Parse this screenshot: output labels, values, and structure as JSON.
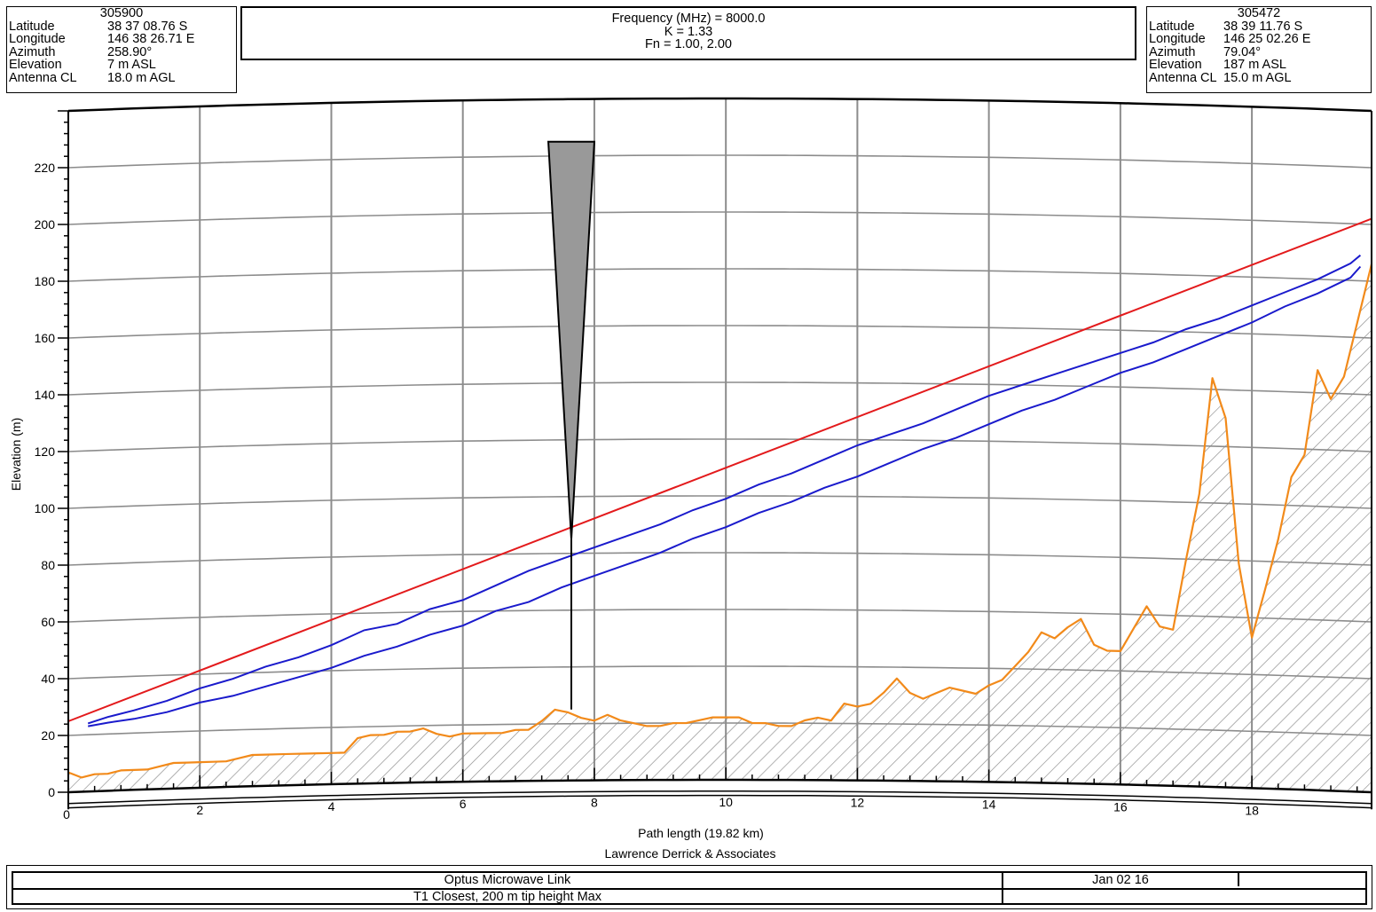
{
  "site_left": {
    "id": "305900",
    "rows": [
      {
        "label": "Latitude",
        "value": "38 37 08.76 S"
      },
      {
        "label": "Longitude",
        "value": "146 38 26.71 E"
      },
      {
        "label": "Azimuth",
        "value": "258.90°"
      },
      {
        "label": "Elevation",
        "value": "7 m ASL"
      },
      {
        "label": "Antenna CL",
        "value": "18.0 m AGL"
      }
    ]
  },
  "site_right": {
    "id": "305472",
    "rows": [
      {
        "label": "Latitude",
        "value": "38 39 11.76 S"
      },
      {
        "label": "Longitude",
        "value": "146 25 02.26 E"
      },
      {
        "label": "Azimuth",
        "value": "79.04°"
      },
      {
        "label": "Elevation",
        "value": "187 m ASL"
      },
      {
        "label": "Antenna CL",
        "value": "15.0 m AGL"
      }
    ]
  },
  "params": {
    "frequency": "Frequency (MHz) = 8000.0",
    "k": "K = 1.33",
    "fn": "Fn = 1.00, 2.00"
  },
  "footer": {
    "title": "Optus Microwave Link",
    "date": "Jan 02 16",
    "subtitle": "T1 Closest, 200 m tip height Max"
  },
  "credit": "Lawrence Derrick & Associates",
  "colors": {
    "terrain": "#f28a1a",
    "line_of_sight": "#e31a1c",
    "fresnel": "#1a1acc",
    "grid": "#8c8c8c",
    "obstruction": "#999999"
  },
  "chart_data": {
    "type": "line",
    "xlabel": "Path length (19.82 km)",
    "ylabel": "Elevation (m)",
    "xlim": [
      0,
      19.82
    ],
    "ylim": [
      0,
      230
    ],
    "x_ticks": [
      0,
      2,
      4,
      6,
      8,
      10,
      12,
      14,
      16,
      18
    ],
    "y_ticks": [
      0,
      20,
      40,
      60,
      80,
      100,
      120,
      140,
      160,
      180,
      200,
      220
    ],
    "grid": true,
    "series": [
      {
        "key": "terrain",
        "x": [
          0,
          0.2,
          0.4,
          0.6,
          0.8,
          1.0,
          1.2,
          1.4,
          1.6,
          1.8,
          2.0,
          2.2,
          2.4,
          2.6,
          2.8,
          3.0,
          3.2,
          3.4,
          3.6,
          3.8,
          4.0,
          4.2,
          4.4,
          4.6,
          4.8,
          5.0,
          5.2,
          5.4,
          5.6,
          5.8,
          6.0,
          6.2,
          6.4,
          6.6,
          6.8,
          7.0,
          7.2,
          7.4,
          7.6,
          7.8,
          8.0,
          8.2,
          8.4,
          8.6,
          8.8,
          9.0,
          9.2,
          9.4,
          9.6,
          9.8,
          10.0,
          10.2,
          10.4,
          10.6,
          10.8,
          11.0,
          11.2,
          11.4,
          11.6,
          11.8,
          12.0,
          12.2,
          12.4,
          12.6,
          12.8,
          13.0,
          13.2,
          13.4,
          13.6,
          13.8,
          14.0,
          14.2,
          14.4,
          14.6,
          14.8,
          15.0,
          15.2,
          15.4,
          15.6,
          15.8,
          16.0,
          16.2,
          16.4,
          16.6,
          16.8,
          17.0,
          17.2,
          17.4,
          17.6,
          17.8,
          18.0,
          18.2,
          18.4,
          18.6,
          18.8,
          19.0,
          19.2,
          19.4,
          19.6,
          19.82
        ],
        "y": [
          7,
          5,
          6,
          6,
          7,
          7,
          7,
          8,
          9,
          9,
          9,
          9,
          9,
          10,
          11,
          11,
          11,
          11,
          11,
          11,
          11,
          11,
          16,
          17,
          17,
          18,
          18,
          19,
          17,
          16,
          17,
          17,
          17,
          17,
          18,
          18,
          21,
          25,
          24,
          22,
          21,
          23,
          21,
          20,
          19,
          19,
          20,
          20,
          21,
          22,
          22,
          22,
          20,
          20,
          19,
          19,
          21,
          22,
          21,
          27,
          26,
          27,
          31,
          36,
          31,
          29,
          31,
          33,
          32,
          31,
          34,
          36,
          41,
          46,
          53,
          51,
          55,
          58,
          49,
          47,
          47,
          55,
          63,
          56,
          55,
          80,
          103,
          144,
          130,
          79,
          53,
          70,
          88,
          110,
          118,
          148,
          138,
          146,
          165,
          186
        ]
      },
      {
        "key": "line_of_sight",
        "x": [
          0,
          19.82
        ],
        "y": [
          25,
          202
        ]
      },
      {
        "key": "fresnel_upper",
        "x": [
          0.3,
          0.6,
          1.0,
          1.5,
          2.0,
          2.5,
          3.0,
          3.5,
          4.0,
          4.5,
          5.0,
          5.5,
          6.0,
          6.5,
          7.0,
          7.5,
          8.0,
          8.5,
          9.0,
          9.5,
          10.0,
          10.5,
          11.0,
          11.5,
          12.0,
          12.5,
          13.0,
          13.5,
          14.0,
          14.5,
          15.0,
          15.5,
          16.0,
          16.5,
          17.0,
          17.5,
          18.0,
          18.5,
          19.0,
          19.5,
          19.65
        ],
        "y": [
          24,
          26,
          28,
          31,
          35,
          38,
          42,
          45,
          49,
          54,
          56,
          61,
          64,
          69,
          74,
          78,
          82,
          86,
          90,
          95,
          99,
          104,
          108,
          113,
          118,
          122,
          126,
          131,
          136,
          140,
          144,
          148,
          152,
          156,
          161,
          165,
          170,
          175,
          180,
          186,
          189
        ]
      },
      {
        "key": "fresnel_lower",
        "x": [
          0.3,
          0.6,
          1.0,
          1.5,
          2.0,
          2.5,
          3.0,
          3.5,
          4.0,
          4.5,
          5.0,
          5.5,
          6.0,
          6.5,
          7.0,
          7.5,
          8.0,
          8.5,
          9.0,
          9.5,
          10.0,
          10.5,
          11.0,
          11.5,
          12.0,
          12.5,
          13.0,
          13.5,
          14.0,
          14.5,
          15.0,
          15.5,
          16.0,
          16.5,
          17.0,
          17.5,
          18.0,
          18.5,
          19.0,
          19.5,
          19.65
        ],
        "y": [
          23,
          24,
          25,
          27,
          30,
          32,
          35,
          38,
          41,
          45,
          48,
          52,
          55,
          60,
          63,
          68,
          72,
          76,
          80,
          85,
          89,
          94,
          98,
          103,
          107,
          112,
          117,
          121,
          126,
          131,
          135,
          140,
          145,
          149,
          154,
          159,
          164,
          170,
          175,
          181,
          185
        ]
      }
    ],
    "obstruction": {
      "x_start": 7.3,
      "x_end": 8.0,
      "x_center": 7.65,
      "top": 225,
      "tip": 85,
      "base": 25
    }
  }
}
